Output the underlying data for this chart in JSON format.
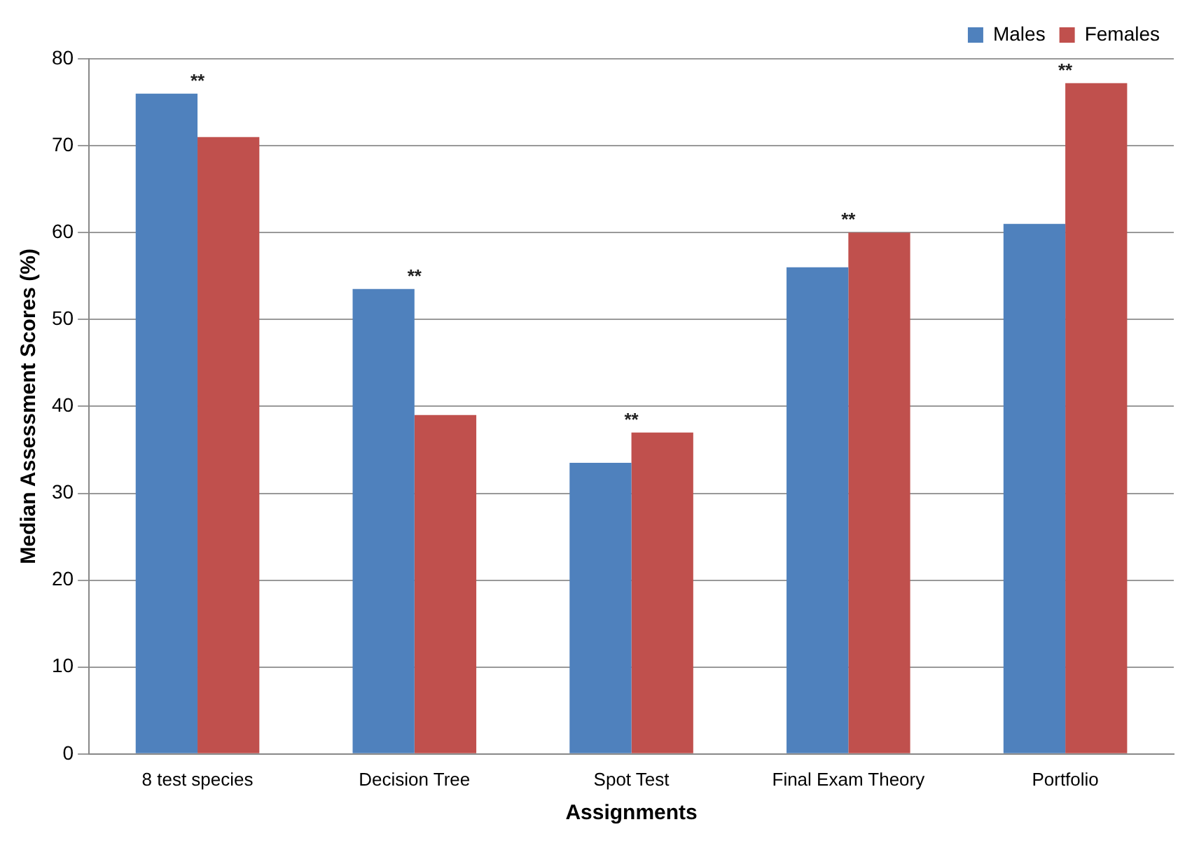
{
  "chart_data": {
    "type": "bar",
    "xlabel": "Assignments",
    "ylabel": "Median Assessment Scores (%)",
    "categories": [
      "8 test species",
      "Decision Tree",
      "Spot Test",
      "Final Exam Theory",
      "Portfolio"
    ],
    "series": [
      {
        "name": "Males",
        "color": "#4f81bd",
        "values": [
          76,
          53.5,
          33.5,
          56,
          61
        ]
      },
      {
        "name": "Females",
        "color": "#c0504d",
        "values": [
          71,
          39,
          37,
          60,
          77.2
        ]
      }
    ],
    "ylim": [
      0,
      80
    ],
    "yticks": [
      0,
      10,
      20,
      30,
      40,
      50,
      60,
      70,
      80
    ],
    "grid": "y",
    "legend": "top right",
    "annotations": [
      "**",
      "**",
      "**",
      "**",
      "**"
    ]
  }
}
